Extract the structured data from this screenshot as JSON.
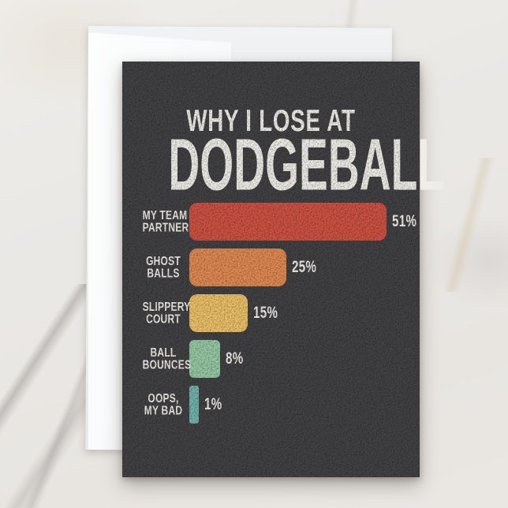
{
  "card": {
    "title_line1": "WHY I LOSE AT",
    "title_line2": "DODGEBALL"
  },
  "rows": [
    {
      "label_line1": "MY TEAM",
      "label_line2": "PARTNER",
      "pct": "51%",
      "value": 51,
      "color": "#cd5243"
    },
    {
      "label_line1": "GHOST",
      "label_line2": "BALLS",
      "pct": "25%",
      "value": 25,
      "color": "#df8a52"
    },
    {
      "label_line1": "SLIPPERY",
      "label_line2": "COURT",
      "pct": "15%",
      "value": 15,
      "color": "#ecc168"
    },
    {
      "label_line1": "BALL",
      "label_line2": "BOUNCES",
      "pct": "8%",
      "value": 8,
      "color": "#96c9a3"
    },
    {
      "label_line1": "OOPS,",
      "label_line2": "MY BAD",
      "pct": "1%",
      "value": 1,
      "color": "#72b3ac"
    }
  ],
  "chart_data": {
    "type": "bar",
    "orientation": "horizontal",
    "title": "WHY I LOSE AT DODGEBALL",
    "categories": [
      "My Team Partner",
      "Ghost Balls",
      "Slippery Court",
      "Ball Bounces",
      "Oops, My Bad"
    ],
    "values": [
      51,
      25,
      15,
      8,
      1
    ],
    "value_labels": [
      "51%",
      "25%",
      "15%",
      "8%",
      "1%"
    ],
    "colors": [
      "#cd5243",
      "#df8a52",
      "#ecc168",
      "#96c9a3",
      "#72b3ac"
    ],
    "xlim": [
      0,
      55
    ],
    "grid": false,
    "legend": false,
    "value_label_position": "right-of-bar",
    "category_label_position": "left-of-bar"
  },
  "colors": {
    "card_background": "#424143",
    "title_text": "#efede7",
    "label_text": "#efede7",
    "marble_base": "#eae8e5",
    "back_panel": "#edeff0",
    "flap": "#fbfcfd"
  }
}
